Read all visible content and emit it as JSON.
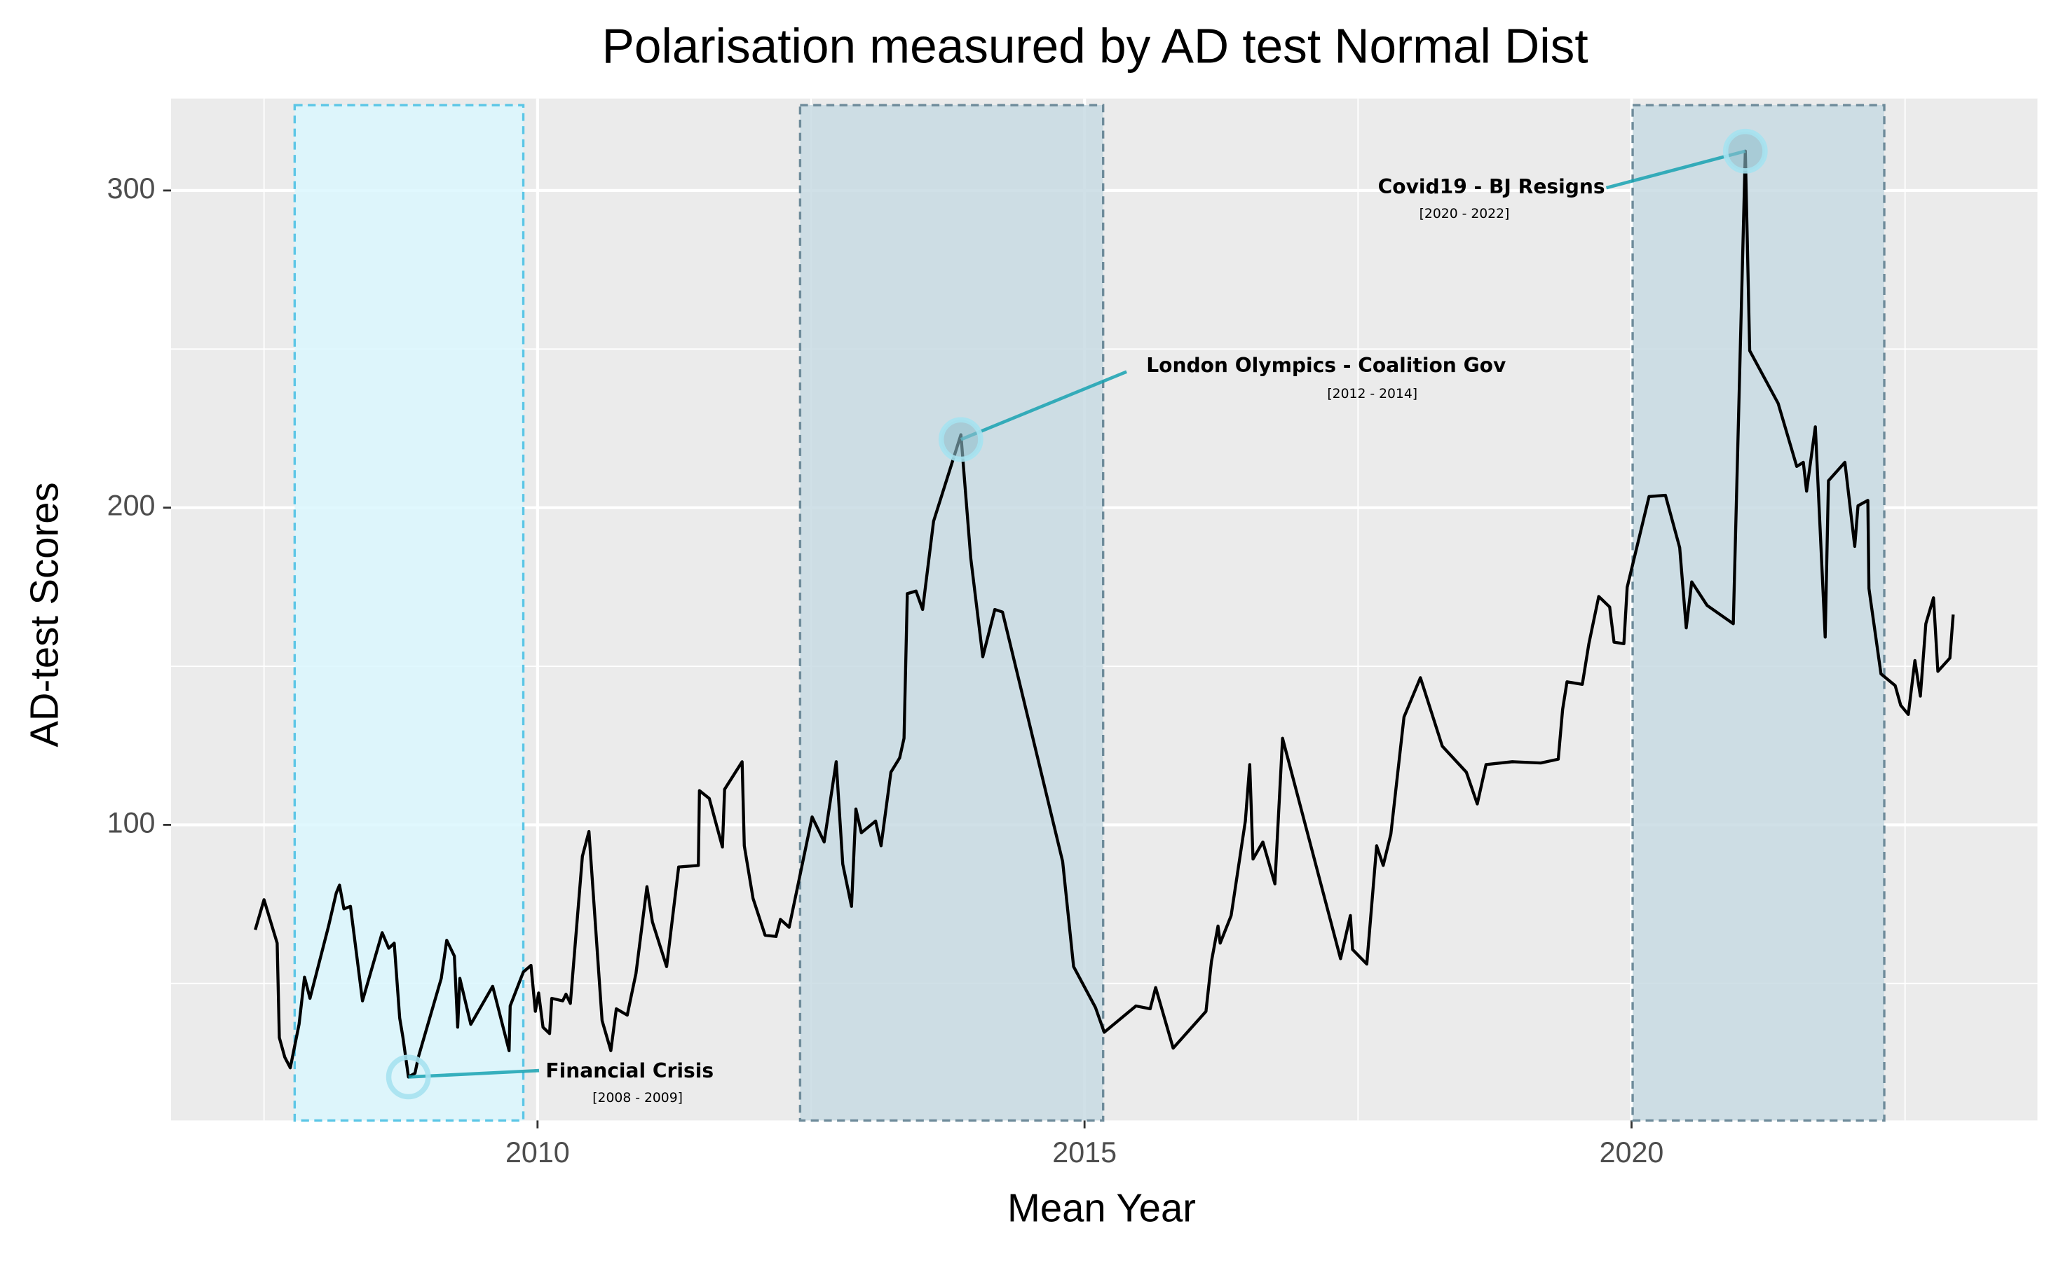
{
  "chart_data": {
    "type": "line",
    "title": "Polarisation measured by AD test Normal Dist",
    "x_label": "Mean Year",
    "y_label": "AD-test Scores",
    "xlim": [
      2006.65,
      2023.71
    ],
    "ylim": [
      6.8,
      329
    ],
    "xticks": [
      2010,
      2015,
      2020
    ],
    "yticks": [
      100,
      200,
      300
    ],
    "grid": true,
    "series": [
      {
        "name": "AD-test Scores",
        "color": "#000000",
        "x": [
          2007.42,
          2007.5,
          2007.62,
          2007.64,
          2007.69,
          2007.74,
          2007.82,
          2007.87,
          2007.92,
          2008.09,
          2008.16,
          2008.19,
          2008.23,
          2008.29,
          2008.4,
          2008.58,
          2008.64,
          2008.69,
          2008.74,
          2008.77,
          2008.82,
          2008.88,
          2008.91,
          2009.12,
          2009.17,
          2009.24,
          2009.27,
          2009.29,
          2009.39,
          2009.59,
          2009.74,
          2009.75,
          2009.87,
          2009.94,
          2009.98,
          2010.01,
          2010.05,
          2010.11,
          2010.13,
          2010.23,
          2010.26,
          2010.3,
          2010.41,
          2010.47,
          2010.59,
          2010.67,
          2010.72,
          2010.82,
          2010.9,
          2011.0,
          2011.05,
          2011.18,
          2011.29,
          2011.47,
          2011.48,
          2011.57,
          2011.69,
          2011.71,
          2011.87,
          2011.89,
          2011.97,
          2012.08,
          2012.18,
          2012.22,
          2012.3,
          2012.51,
          2012.62,
          2012.73,
          2012.79,
          2012.87,
          2012.91,
          2012.96,
          2013.09,
          2013.14,
          2013.23,
          2013.31,
          2013.35,
          2013.38,
          2013.46,
          2013.52,
          2013.62,
          2013.87,
          2013.96,
          2014.07,
          2014.18,
          2014.25,
          2014.8,
          2014.9,
          2015.1,
          2015.18,
          2015.47,
          2015.6,
          2015.65,
          2015.81,
          2016.11,
          2016.16,
          2016.22,
          2016.24,
          2016.34,
          2016.47,
          2016.51,
          2016.54,
          2016.63,
          2016.74,
          2016.81,
          2017.34,
          2017.43,
          2017.45,
          2017.58,
          2017.67,
          2017.73,
          2017.8,
          2017.92,
          2018.07,
          2018.27,
          2018.49,
          2018.59,
          2018.67,
          2018.91,
          2019.17,
          2019.33,
          2019.37,
          2019.41,
          2019.55,
          2019.61,
          2019.7,
          2019.8,
          2019.84,
          2019.93,
          2019.96,
          2020.16,
          2020.31,
          2020.44,
          2020.5,
          2020.55,
          2020.69,
          2020.93,
          2021.04,
          2021.08,
          2021.34,
          2021.51,
          2021.57,
          2021.6,
          2021.68,
          2021.77,
          2021.8,
          2021.95,
          2022.04,
          2022.07,
          2022.16,
          2022.17,
          2022.28,
          2022.41,
          2022.46,
          2022.53,
          2022.59,
          2022.64,
          2022.69,
          2022.76,
          2022.8,
          2022.91,
          2022.94
        ],
        "values": [
          66.9,
          76.4,
          62.7,
          32.9,
          26.7,
          23.4,
          37.1,
          52.0,
          45.3,
          68.1,
          78.5,
          81.0,
          73.5,
          74.3,
          44.5,
          66.0,
          61.1,
          62.7,
          39.1,
          32.9,
          20.5,
          21.7,
          26.7,
          51.6,
          63.6,
          58.6,
          36.2,
          51.6,
          37.1,
          49.1,
          28.8,
          42.9,
          53.6,
          55.7,
          41.2,
          47.0,
          36.2,
          34.2,
          45.3,
          44.5,
          46.6,
          43.7,
          90.1,
          97.9,
          38.3,
          28.8,
          42.0,
          40.0,
          53.2,
          80.5,
          69.4,
          55.3,
          86.7,
          87.2,
          110.8,
          108.3,
          93.0,
          111.2,
          119.9,
          93.4,
          76.8,
          65.2,
          64.8,
          70.2,
          67.7,
          102.5,
          94.6,
          119.9,
          87.6,
          74.3,
          105.0,
          97.5,
          101.2,
          93.4,
          116.6,
          121.1,
          127.3,
          172.9,
          173.7,
          167.9,
          195.7,
          223.0,
          184.1,
          153.0,
          167.9,
          167.1,
          88.4,
          55.3,
          42.4,
          34.6,
          42.9,
          42.0,
          48.7,
          29.6,
          41.2,
          56.9,
          68.1,
          62.7,
          71.4,
          101.2,
          119.0,
          89.2,
          94.6,
          81.4,
          127.3,
          57.8,
          71.4,
          60.7,
          56.1,
          93.4,
          87.2,
          97.1,
          134.0,
          146.4,
          124.8,
          116.6,
          106.6,
          119.0,
          119.9,
          119.5,
          120.7,
          136.4,
          145.1,
          144.3,
          157.1,
          172.0,
          168.7,
          157.6,
          157.1,
          174.9,
          203.5,
          203.9,
          187.4,
          162.1,
          176.6,
          169.2,
          163.4,
          312.4,
          249.5,
          232.9,
          213.0,
          214.3,
          205.2,
          225.5,
          159.2,
          208.5,
          214.3,
          187.8,
          200.6,
          202.3,
          174.5,
          147.6,
          143.9,
          137.7,
          134.8,
          151.8,
          140.6,
          163.4,
          171.6,
          148.4,
          152.6,
          166.3
        ]
      }
    ],
    "regions": [
      {
        "xmin": 2007.78,
        "xmax": 2009.87,
        "color": "#dbf7fe",
        "edge": "#5bc6e6"
      },
      {
        "xmin": 2012.4,
        "xmax": 2015.17,
        "color": "#c8dbe3",
        "edge": "#6e8b9a"
      },
      {
        "xmin": 2020.01,
        "xmax": 2022.31,
        "color": "#c8dbe3",
        "edge": "#6e8b9a"
      }
    ],
    "annotations": [
      {
        "text": "Financial Crisis",
        "subtext": "[2008 - 2009]",
        "x": 2008.82,
        "y": 20.5
      },
      {
        "text": "London Olympics - Coalition Gov",
        "subtext": "[2012 - 2014]",
        "x": 2013.87,
        "y": 221.5
      },
      {
        "text": "Covid19 - BJ Resigns",
        "subtext": "[2020 - 2022]",
        "x": 2021.04,
        "y": 312.4
      }
    ]
  }
}
